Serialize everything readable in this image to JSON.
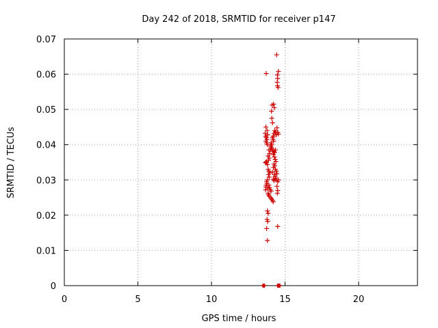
{
  "chart_data": {
    "type": "scatter",
    "title": "Day 242 of 2018, SRMTID for receiver p147",
    "xlabel": "GPS time / hours",
    "ylabel": "SRMTID / TECUs",
    "xlim": [
      0,
      24
    ],
    "ylim": [
      0,
      0.07
    ],
    "xticks": [
      0,
      5,
      10,
      15,
      20
    ],
    "xtick_labels": [
      "0",
      "5",
      "10",
      "15",
      "20"
    ],
    "yticks": [
      0,
      0.01,
      0.02,
      0.03,
      0.04,
      0.05,
      0.06,
      0.07
    ],
    "ytick_labels": [
      "0",
      "0.01",
      "0.02",
      "0.03",
      "0.04",
      "0.05",
      "0.06",
      "0.07"
    ],
    "grid": true,
    "series": [
      {
        "name": "SRMTID",
        "marker": "plus",
        "color": "#cc0000",
        "points": [
          [
            13.72,
            0.0602
          ],
          [
            14.43,
            0.0655
          ],
          [
            14.55,
            0.0608
          ],
          [
            14.48,
            0.0598
          ],
          [
            14.5,
            0.0588
          ],
          [
            14.47,
            0.0577
          ],
          [
            14.49,
            0.0567
          ],
          [
            14.53,
            0.0562
          ],
          [
            14.12,
            0.0512
          ],
          [
            14.22,
            0.0515
          ],
          [
            14.27,
            0.0505
          ],
          [
            14.08,
            0.0495
          ],
          [
            14.1,
            0.0475
          ],
          [
            14.15,
            0.0462
          ],
          [
            13.7,
            0.045
          ],
          [
            13.78,
            0.044
          ],
          [
            13.65,
            0.0432
          ],
          [
            13.82,
            0.0428
          ],
          [
            13.68,
            0.0424
          ],
          [
            13.73,
            0.042
          ],
          [
            13.77,
            0.0415
          ],
          [
            13.7,
            0.041
          ],
          [
            13.75,
            0.0405
          ],
          [
            13.8,
            0.04
          ],
          [
            14.3,
            0.044
          ],
          [
            14.35,
            0.0436
          ],
          [
            14.25,
            0.0432
          ],
          [
            14.4,
            0.0428
          ],
          [
            14.2,
            0.0424
          ],
          [
            14.45,
            0.0448
          ],
          [
            14.5,
            0.0435
          ],
          [
            14.55,
            0.043
          ],
          [
            14.15,
            0.042
          ],
          [
            14.18,
            0.0415
          ],
          [
            14.22,
            0.041
          ],
          [
            14.05,
            0.0405
          ],
          [
            14.1,
            0.04
          ],
          [
            14.02,
            0.0396
          ],
          [
            14.08,
            0.0392
          ],
          [
            14.12,
            0.0388
          ],
          [
            14.0,
            0.0385
          ],
          [
            14.15,
            0.0382
          ],
          [
            14.25,
            0.038
          ],
          [
            14.35,
            0.0385
          ],
          [
            14.3,
            0.0378
          ],
          [
            13.9,
            0.0385
          ],
          [
            13.95,
            0.0375
          ],
          [
            13.85,
            0.0368
          ],
          [
            13.92,
            0.0362
          ],
          [
            13.88,
            0.0356
          ],
          [
            13.75,
            0.0352
          ],
          [
            13.7,
            0.0348
          ],
          [
            13.8,
            0.0344
          ],
          [
            13.68,
            0.035
          ],
          [
            14.2,
            0.0372
          ],
          [
            14.28,
            0.0365
          ],
          [
            14.33,
            0.0358
          ],
          [
            14.38,
            0.0352
          ],
          [
            14.25,
            0.0345
          ],
          [
            14.3,
            0.034
          ],
          [
            14.22,
            0.0335
          ],
          [
            14.35,
            0.033
          ],
          [
            14.4,
            0.0325
          ],
          [
            14.15,
            0.0322
          ],
          [
            14.45,
            0.0318
          ],
          [
            14.28,
            0.0315
          ],
          [
            14.32,
            0.031
          ],
          [
            14.37,
            0.0305
          ],
          [
            14.42,
            0.03
          ],
          [
            14.5,
            0.0295
          ],
          [
            14.55,
            0.03
          ],
          [
            14.2,
            0.0302
          ],
          [
            14.25,
            0.0298
          ],
          [
            13.85,
            0.033
          ],
          [
            13.9,
            0.0325
          ],
          [
            13.95,
            0.032
          ],
          [
            13.88,
            0.0315
          ],
          [
            13.92,
            0.0308
          ],
          [
            13.8,
            0.03
          ],
          [
            13.75,
            0.0295
          ],
          [
            13.78,
            0.029
          ],
          [
            13.72,
            0.0285
          ],
          [
            13.7,
            0.028
          ],
          [
            13.82,
            0.0276
          ],
          [
            13.68,
            0.0272
          ],
          [
            13.9,
            0.0285
          ],
          [
            13.95,
            0.0278
          ],
          [
            14.0,
            0.0272
          ],
          [
            14.05,
            0.0268
          ],
          [
            13.85,
            0.0262
          ],
          [
            13.88,
            0.0258
          ],
          [
            13.92,
            0.0254
          ],
          [
            14.02,
            0.025
          ],
          [
            14.08,
            0.0246
          ],
          [
            14.15,
            0.0242
          ],
          [
            14.2,
            0.0238
          ],
          [
            14.45,
            0.0282
          ],
          [
            14.5,
            0.027
          ],
          [
            14.48,
            0.0262
          ],
          [
            13.8,
            0.0212
          ],
          [
            13.85,
            0.0205
          ],
          [
            13.78,
            0.0188
          ],
          [
            13.82,
            0.0182
          ],
          [
            13.75,
            0.0162
          ],
          [
            14.5,
            0.0168
          ],
          [
            13.8,
            0.0128
          ]
        ]
      }
    ],
    "zero_marks_x": [
      13.5,
      13.55,
      13.6,
      14.5,
      14.55,
      14.6,
      14.65
    ]
  }
}
